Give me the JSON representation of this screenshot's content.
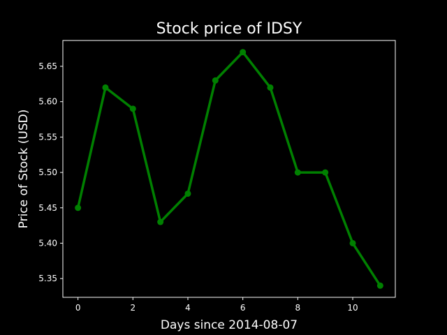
{
  "chart_data": {
    "type": "line",
    "title": "Stock price of IDSY",
    "xlabel": "Days since 2014-08-07",
    "ylabel": "Price of Stock (USD)",
    "x": [
      0,
      1,
      2,
      3,
      4,
      5,
      6,
      7,
      8,
      9,
      10,
      11
    ],
    "series": [
      {
        "values": [
          5.45,
          5.62,
          5.59,
          5.43,
          5.47,
          5.63,
          5.67,
          5.62,
          5.5,
          5.5,
          5.4,
          5.34
        ],
        "color": "#008000"
      }
    ],
    "xlim": [
      -0.55,
      11.55
    ],
    "ylim": [
      5.3235,
      5.6865
    ],
    "xticks": [
      0,
      2,
      4,
      6,
      8,
      10
    ],
    "xtick_labels": [
      "0",
      "2",
      "4",
      "6",
      "8",
      "10"
    ],
    "yticks": [
      5.35,
      5.4,
      5.45,
      5.5,
      5.55,
      5.6,
      5.65
    ],
    "ytick_labels": [
      "5.35",
      "5.40",
      "5.45",
      "5.50",
      "5.55",
      "5.60",
      "5.65"
    ],
    "grid": false,
    "background": "#000000",
    "axes_color": "#ffffff"
  }
}
